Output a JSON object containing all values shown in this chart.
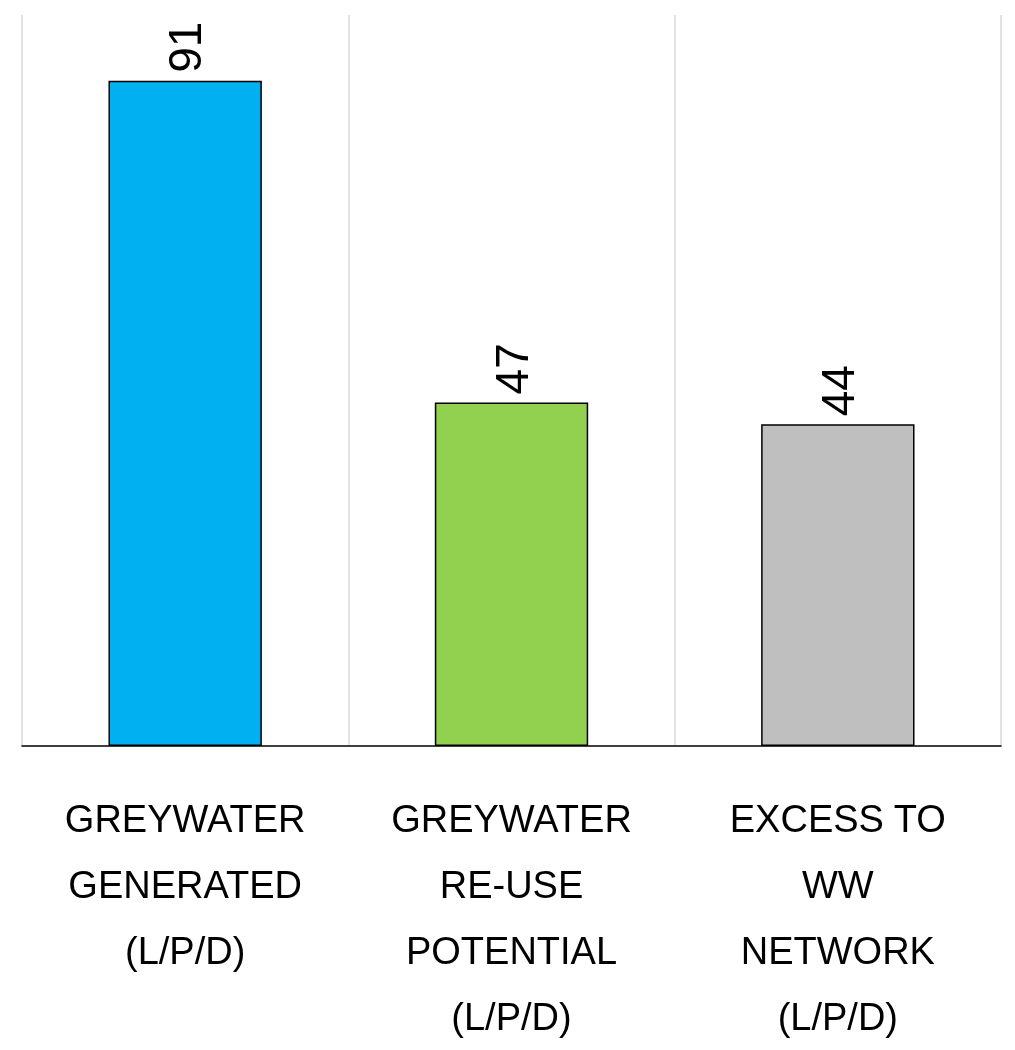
{
  "chart_data": {
    "type": "bar",
    "categories": [
      "GREYWATER GENERATED (L/P/D)",
      "GREYWATER RE-USE POTENTIAL (L/P/D)",
      "EXCESS TO WW NETWORK (L/P/D)"
    ],
    "values": [
      91,
      47,
      44
    ],
    "colors": [
      "#00b0f0",
      "#92d050",
      "#bfbfbf"
    ],
    "ylim": [
      0,
      100
    ],
    "data_labels": true,
    "grid": "x"
  }
}
